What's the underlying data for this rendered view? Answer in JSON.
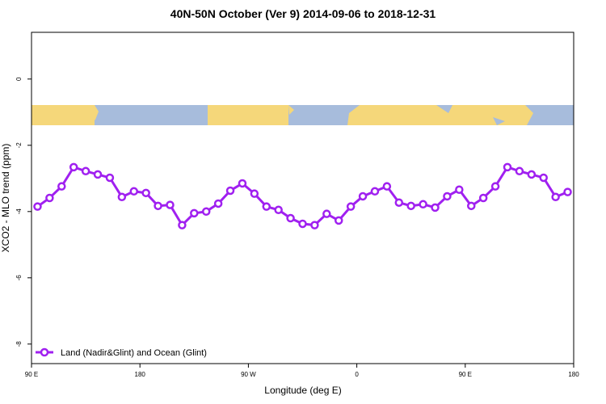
{
  "chart_data": {
    "type": "line",
    "title": "40N-50N October (Ver 9)   2014-09-06 to 2018-12-31",
    "x_label": "Longitude (deg E)",
    "y_label": "XCO2 - MLO trend (ppm)",
    "x": [
      95,
      105,
      115,
      125,
      135,
      145,
      155,
      165,
      175,
      185,
      195,
      205,
      215,
      225,
      235,
      245,
      255,
      265,
      275,
      285,
      295,
      305,
      315,
      325,
      335,
      345,
      355,
      365,
      375,
      385,
      395,
      405,
      415,
      425,
      435,
      445,
      455,
      465,
      475,
      485,
      495,
      505,
      515,
      525,
      535
    ],
    "series": [
      {
        "name": "Land (Nadir&Glint) and Ocean (Glint)",
        "color": "#a020f0",
        "values": [
          -3.85,
          -3.59,
          -3.24,
          -2.66,
          -2.78,
          -2.88,
          -2.98,
          -3.56,
          -3.39,
          -3.44,
          -3.83,
          -3.8,
          -4.41,
          -4.05,
          -4.0,
          -3.76,
          -3.37,
          -3.15,
          -3.46,
          -3.85,
          -3.95,
          -4.2,
          -4.37,
          -4.41,
          -4.07,
          -4.27,
          -3.85,
          -3.54,
          -3.39,
          -3.24,
          -3.73,
          -3.83,
          -3.78,
          -3.88,
          -3.54,
          -3.34,
          -3.83,
          -3.59,
          -3.24,
          -2.66,
          -2.78,
          -2.88,
          -2.98,
          -3.56,
          -3.41
        ]
      }
    ],
    "xlim": [
      90,
      540
    ],
    "xticks": [
      {
        "value": 90,
        "label": "90 E"
      },
      180,
      {
        "value": 270,
        "label": "90 W"
      },
      {
        "value": 360,
        "label": "0"
      },
      {
        "value": 450,
        "label": "90 E"
      },
      {
        "value": 540,
        "label": "180"
      }
    ],
    "ylim": [
      -8.59,
      1.41
    ],
    "yticks": [
      0,
      -2,
      -4,
      -6,
      -8
    ],
    "legend": "bottom-left"
  }
}
